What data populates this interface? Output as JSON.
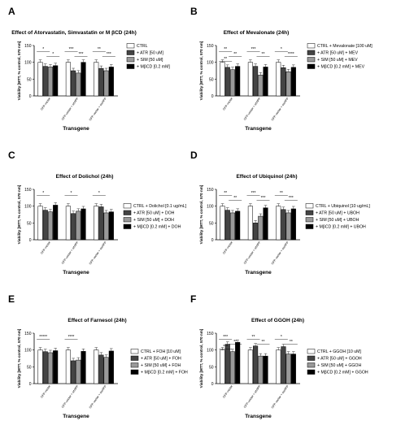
{
  "chart_data": [
    {
      "type": "bar",
      "panel_letter": "A",
      "title": "Effect of Atorvastatin, Simvastatin or M βCD (24h)",
      "ylabel": "Viability [MTT, % control, 570 nm]",
      "xlabel": "Transgene",
      "ylim": [
        0,
        150
      ],
      "yticks": [
        "0",
        "50",
        "100",
        "150"
      ],
      "categories": [
        "GFP-vector",
        "GFP-vector + wtAPP",
        "GFP-vector + swAPP"
      ],
      "series": [
        {
          "name": "CTRL",
          "color": "#ffffff",
          "values": [
            100,
            100,
            100
          ]
        },
        {
          "name": "+ ATR [50 uM]",
          "color": "#444444",
          "values": [
            88,
            75,
            82
          ]
        },
        {
          "name": "+ SIM [50 uM]",
          "color": "#999999",
          "values": [
            86,
            68,
            75
          ]
        },
        {
          "name": "+ MβCD [0.2 mM]",
          "color": "#000000",
          "values": [
            90,
            100,
            86
          ]
        }
      ],
      "annotations": [
        "*",
        "***",
        "**",
        "*",
        "***",
        "***"
      ]
    },
    {
      "type": "bar",
      "panel_letter": "B",
      "title": "Effect of Mevalonate (24h)",
      "ylabel": "Viability [MTT, % control, 570 nm]",
      "xlabel": "Transgene",
      "ylim": [
        0,
        150
      ],
      "yticks": [
        "0",
        "50",
        "100",
        "150"
      ],
      "categories": [
        "GFP-vector",
        "GFP-vector + wtAPP",
        "GFP-vector + swAPP"
      ],
      "series": [
        {
          "name": "CTRL + Mevalonate [100 uM]",
          "color": "#ffffff",
          "values": [
            100,
            100,
            100
          ]
        },
        {
          "name": "+ ATR [50 uM] + MEV",
          "color": "#444444",
          "values": [
            85,
            88,
            84
          ]
        },
        {
          "name": "+ SIM [50 uM] + MEV",
          "color": "#999999",
          "values": [
            78,
            62,
            72
          ]
        },
        {
          "name": "+ MβCD [0.2 mM] + MEV",
          "color": "#000000",
          "values": [
            88,
            86,
            85
          ]
        }
      ],
      "annotations": [
        "**",
        "***",
        "*",
        "**",
        "**",
        "****",
        "**"
      ]
    },
    {
      "type": "bar",
      "panel_letter": "C",
      "title": "Effect of Dolichol (24h)",
      "ylabel": "Viability [MTT, % control, 570 nm]",
      "xlabel": "Transgene",
      "ylim": [
        0,
        150
      ],
      "yticks": [
        "0",
        "50",
        "100",
        "150"
      ],
      "categories": [
        "GFP-vector",
        "GFP-vector + wtAPP",
        "GFP-vector + swAPP"
      ],
      "series": [
        {
          "name": "CTRL + Dolichol [0.1 ug/mL]",
          "color": "#ffffff",
          "values": [
            100,
            100,
            100
          ]
        },
        {
          "name": "+ ATR [50 uM] + DOH",
          "color": "#444444",
          "values": [
            88,
            78,
            98
          ]
        },
        {
          "name": "+ SIM [50 uM] + DOH",
          "color": "#999999",
          "values": [
            83,
            85,
            80
          ]
        },
        {
          "name": "+ MβCD [0.2 mM] + DOH",
          "color": "#000000",
          "values": [
            103,
            92,
            83
          ]
        }
      ],
      "annotations": [
        "*",
        "*",
        "*"
      ]
    },
    {
      "type": "bar",
      "panel_letter": "D",
      "title": "Effect of Ubiquinol (24h)",
      "ylabel": "Viability [MTT, % control, 570 nm]",
      "xlabel": "Transgene",
      "ylim": [
        0,
        150
      ],
      "yticks": [
        "0",
        "50",
        "100",
        "150"
      ],
      "categories": [
        "GFP-vector",
        "GFP-vector + wtAPP",
        "GFP-vector + swAPP"
      ],
      "series": [
        {
          "name": "CTRL + Ubiquinol [10 ug/mL]",
          "color": "#ffffff",
          "values": [
            100,
            100,
            100
          ]
        },
        {
          "name": "+ ATR [50 uM] + UBOH",
          "color": "#444444",
          "values": [
            88,
            50,
            90
          ]
        },
        {
          "name": "+ SIM [50 uM] + UBOH",
          "color": "#999999",
          "values": [
            80,
            70,
            80
          ]
        },
        {
          "name": "+ MβCD [0.2 mM] + UBOH",
          "color": "#000000",
          "values": [
            85,
            95,
            92
          ]
        }
      ],
      "annotations": [
        "**",
        "***",
        "**",
        "**",
        "***",
        "***"
      ]
    },
    {
      "type": "bar",
      "panel_letter": "E",
      "title": "Effect of Farnesol (24h)",
      "ylabel": "Viability [MTT, % control, 570 nm]",
      "xlabel": "Transgene",
      "ylim": [
        0,
        150
      ],
      "yticks": [
        "0",
        "50",
        "100",
        "150"
      ],
      "categories": [
        "GFP-vector",
        "GFP-vector + wtAPP",
        "GFP-vector + swAPP"
      ],
      "series": [
        {
          "name": "CTRL + FOH [10 uM]",
          "color": "#ffffff",
          "values": [
            100,
            100,
            100
          ]
        },
        {
          "name": "+ ATR [50 uM] + FOH",
          "color": "#444444",
          "values": [
            95,
            68,
            85
          ]
        },
        {
          "name": "+ SIM [50 uM] + FOH",
          "color": "#999999",
          "values": [
            92,
            70,
            78
          ]
        },
        {
          "name": "+ MβCD [0.2 mM] + FOH",
          "color": "#000000",
          "values": [
            98,
            96,
            97
          ]
        }
      ],
      "annotations": [
        "*****",
        "****"
      ]
    },
    {
      "type": "bar",
      "panel_letter": "F",
      "title": "Effect of GGOH (24h)",
      "ylabel": "Viability [MTT, % control, 570 nm]",
      "xlabel": "Transgene",
      "ylim": [
        0,
        150
      ],
      "yticks": [
        "0",
        "50",
        "100",
        "150"
      ],
      "categories": [
        "GFP-vector",
        "GFP-vector + wtAPP",
        "GFP-vector + swAPP"
      ],
      "series": [
        {
          "name": "CTRL + GGOH [10 uM]",
          "color": "#ffffff",
          "values": [
            100,
            100,
            100
          ]
        },
        {
          "name": "+ ATR [50 uM] + GGOH",
          "color": "#444444",
          "values": [
            117,
            112,
            110
          ]
        },
        {
          "name": "+ SIM [50 uM] + GGOH",
          "color": "#999999",
          "values": [
            95,
            82,
            88
          ]
        },
        {
          "name": "+ MβCD [0.2 mM] + GGOH",
          "color": "#000000",
          "values": [
            123,
            82,
            88
          ]
        }
      ],
      "annotations": [
        "***",
        "**",
        "*",
        "**",
        "**",
        "**",
        "***"
      ]
    }
  ]
}
